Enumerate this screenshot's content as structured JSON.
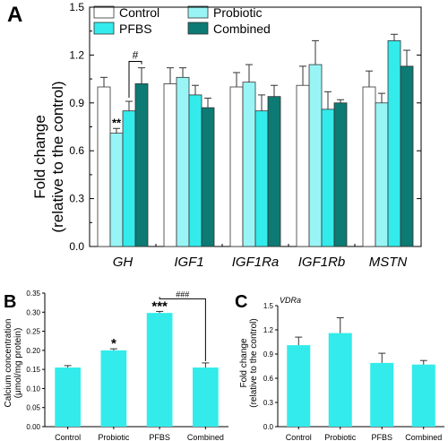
{
  "colors": {
    "control": "#ffffff",
    "probiotic": "#99f5f5",
    "pfbs": "#33ebeb",
    "combined": "#0d7a73",
    "panel_bc_bar": "#33ebeb",
    "bar_stroke": "#333333"
  },
  "chart_data": [
    {
      "panel_label": "A",
      "type": "bar",
      "title": "",
      "xlabel": "",
      "ylabel": "Fold change\n(relative to the control)",
      "ylabel_lines": [
        "Fold change",
        "(relative to the control)"
      ],
      "ylim": [
        0.0,
        1.5
      ],
      "yticks": [
        "0.0",
        "0.3",
        "0.6",
        "0.9",
        "1.2",
        "1.5"
      ],
      "categories": [
        "GH",
        "IGF1",
        "IGF1Ra",
        "IGF1Rb",
        "MSTN"
      ],
      "legend": {
        "placement": "top-left",
        "entries": [
          "Control",
          "Probiotic",
          "PFBS",
          "Combined"
        ]
      },
      "series": [
        {
          "name": "Control",
          "values": [
            1.0,
            1.02,
            1.0,
            1.01,
            1.0
          ],
          "errors": [
            0.06,
            0.1,
            0.09,
            0.12,
            0.1
          ]
        },
        {
          "name": "Probiotic",
          "values": [
            0.71,
            1.06,
            1.03,
            1.14,
            0.9
          ],
          "errors": [
            0.03,
            0.06,
            0.11,
            0.15,
            0.06
          ]
        },
        {
          "name": "PFBS",
          "values": [
            0.85,
            0.95,
            0.85,
            0.86,
            1.29
          ],
          "errors": [
            0.06,
            0.06,
            0.1,
            0.11,
            0.04
          ]
        },
        {
          "name": "Combined",
          "values": [
            1.02,
            0.87,
            0.94,
            0.9,
            1.13
          ],
          "errors": [
            0.1,
            0.06,
            0.07,
            0.02,
            0.1
          ]
        }
      ],
      "annotations": [
        {
          "text": "**",
          "category": "GH",
          "series": "Probiotic"
        },
        {
          "text": "#",
          "category": "GH",
          "from_series": "PFBS",
          "to_series": "Combined",
          "bracket_y": 1.16
        }
      ]
    },
    {
      "panel_label": "B",
      "type": "bar",
      "title": "",
      "xlabel": "",
      "ylabel": "Calcium concentration\n(μmol/mg protein)",
      "ylabel_lines": [
        "Calcium concentration",
        "(μmol/mg protein)"
      ],
      "ylim": [
        0.0,
        0.35
      ],
      "yticks": [
        "0.00",
        "0.05",
        "0.10",
        "0.15",
        "0.20",
        "0.25",
        "0.30",
        "0.35"
      ],
      "categories": [
        "Control",
        "Probiotic",
        "PFBS",
        "Combined"
      ],
      "values": [
        0.155,
        0.2,
        0.298,
        0.155
      ],
      "errors": [
        0.005,
        0.004,
        0.004,
        0.012
      ],
      "annotations": [
        {
          "text": "*",
          "category": "Probiotic"
        },
        {
          "text": "***",
          "category": "PFBS"
        },
        {
          "text": "###",
          "from_category": "PFBS",
          "to_category": "Combined",
          "bracket_y": 0.335
        }
      ]
    },
    {
      "panel_label": "C",
      "type": "bar",
      "title": "VDRa",
      "xlabel": "",
      "ylabel": "Fold change\n(relative to the control)",
      "ylabel_lines": [
        "Fold change",
        "(relative to the control)"
      ],
      "ylim": [
        0.0,
        1.5
      ],
      "yticks": [
        "0.0",
        "0.3",
        "0.6",
        "0.9",
        "1.2",
        "1.5"
      ],
      "categories": [
        "Control",
        "Probiotic",
        "PFBS",
        "Combined"
      ],
      "values": [
        1.01,
        1.16,
        0.79,
        0.77
      ],
      "errors": [
        0.1,
        0.19,
        0.12,
        0.05
      ],
      "annotations": []
    }
  ]
}
